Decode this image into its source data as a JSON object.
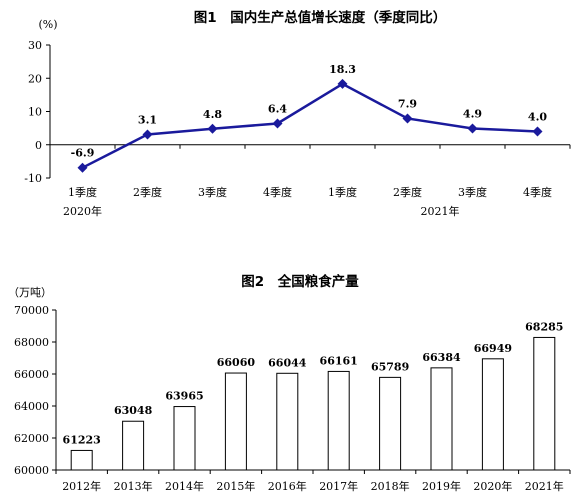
{
  "chart_data": [
    {
      "type": "line",
      "title": "图1　国内生产总值增长速度（季度同比）",
      "y_unit": "(%)",
      "categories": [
        "1季度",
        "2季度",
        "3季度",
        "4季度",
        "1季度",
        "2季度",
        "3季度",
        "4季度"
      ],
      "year_groups": [
        {
          "label": "2020年",
          "start": 0,
          "end": 3
        },
        {
          "label": "2021年",
          "start": 4,
          "end": 7
        }
      ],
      "values": [
        -6.9,
        3.1,
        4.8,
        6.4,
        18.3,
        7.9,
        4.9,
        4.0
      ],
      "value_labels": [
        "-6.9",
        "3.1",
        "4.8",
        "6.4",
        "18.3",
        "7.9",
        "4.9",
        "4.0"
      ],
      "ylim": [
        -10,
        30
      ],
      "yticks": [
        "-10",
        "0",
        "10",
        "20",
        "30"
      ],
      "color": "#1a1a9c",
      "grid": false,
      "legend": "none"
    },
    {
      "type": "bar",
      "title": "图2　全国粮食产量",
      "y_unit": "（万吨）",
      "categories": [
        "2012年",
        "2013年",
        "2014年",
        "2015年",
        "2016年",
        "2017年",
        "2018年",
        "2019年",
        "2020年",
        "2021年"
      ],
      "values": [
        61223,
        63048,
        63965,
        66060,
        66044,
        66161,
        65789,
        66384,
        66949,
        68285
      ],
      "value_labels": [
        "61223",
        "63048",
        "63965",
        "66060",
        "66044",
        "66161",
        "65789",
        "66384",
        "66949",
        "68285"
      ],
      "ylim": [
        60000,
        70000
      ],
      "yticks": [
        "60000",
        "62000",
        "64000",
        "66000",
        "68000",
        "70000"
      ],
      "bar_fill": "#ffffff",
      "bar_stroke": "#000000",
      "grid": false,
      "legend": "none"
    }
  ]
}
